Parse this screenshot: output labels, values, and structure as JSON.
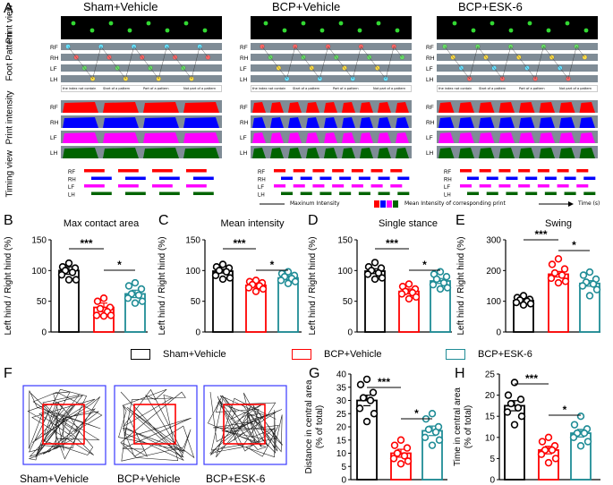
{
  "panel_labels": [
    "A",
    "B",
    "C",
    "D",
    "E",
    "F",
    "G",
    "H"
  ],
  "panelA": {
    "columns": [
      "Sham+Vehicle",
      "BCP+Vehicle",
      "BCP+ESK-6"
    ],
    "row_labels": {
      "print_view": "Print view",
      "foot_pattern": "Foot Pattern",
      "print_intensity": "Print intensity",
      "timing_view": "Timing view"
    },
    "print_view_lanes": [
      "RH",
      "LH"
    ],
    "lanes": [
      "RF",
      "RH",
      "LF",
      "LH"
    ],
    "footprint_legend": [
      "the index not contain",
      "Start of a pattern",
      "Part of a pattern",
      "Not part of a pattern"
    ],
    "bottom_legend": {
      "max": "Maxinum Intensity",
      "mean": "Mean Intensity of corresponding print",
      "time": "Time (s)"
    },
    "colors": {
      "RF": "#ff0000",
      "RH": "#0000ff",
      "LF": "#ff00ff",
      "LH": "#006400",
      "track_bg": "#7f8c96",
      "dark_bg": "#000000"
    }
  },
  "legend": {
    "items": [
      {
        "label": "Sham+Vehicle",
        "color": "#000000"
      },
      {
        "label": "BCP+Vehicle",
        "color": "#ff0000"
      },
      {
        "label": "BCP+ESK-6",
        "color": "#1f8c96"
      }
    ]
  },
  "track_labels": [
    "Sham+Vehicle",
    "BCP+Vehicle",
    "BCP+ESK-6"
  ],
  "chart_data": [
    {
      "panel": "B",
      "type": "bar",
      "title": "Max contact area",
      "ylabel": "Left hind / Right hind (%)",
      "ylim": [
        0,
        150
      ],
      "yticks": [
        0,
        50,
        100,
        150
      ],
      "categories": [
        "Sham+Vehicle",
        "BCP+Vehicle",
        "BCP+ESK-6"
      ],
      "values": [
        100,
        40,
        62
      ],
      "errors": [
        6,
        7,
        6
      ],
      "points": [
        [
          112,
          106,
          104,
          100,
          97,
          93,
          85,
          85
        ],
        [
          55,
          50,
          40,
          38,
          33,
          27,
          27,
          26
        ],
        [
          80,
          75,
          70,
          62,
          60,
          55,
          50,
          47
        ]
      ],
      "sig": [
        {
          "a": 0,
          "b": 1,
          "label": "***"
        },
        {
          "a": 1,
          "b": 2,
          "label": "*"
        }
      ]
    },
    {
      "panel": "C",
      "type": "bar",
      "title": "Mean intensity",
      "ylabel": "Left hind / Right hind (%)",
      "ylim": [
        0,
        150
      ],
      "yticks": [
        0,
        50,
        100,
        150
      ],
      "categories": [
        "Sham+Vehicle",
        "BCP+Vehicle",
        "BCP+ESK-6"
      ],
      "values": [
        99,
        76,
        88
      ],
      "errors": [
        3,
        3,
        3
      ],
      "points": [
        [
          110,
          106,
          104,
          100,
          98,
          92,
          88,
          86
        ],
        [
          84,
          82,
          80,
          77,
          75,
          72,
          70,
          66
        ],
        [
          98,
          95,
          92,
          90,
          87,
          84,
          82,
          79
        ]
      ],
      "sig": [
        {
          "a": 0,
          "b": 1,
          "label": "***"
        },
        {
          "a": 1,
          "b": 2,
          "label": "*"
        }
      ]
    },
    {
      "panel": "D",
      "type": "bar",
      "title": "Single stance",
      "ylabel": "Left hind / Right hind (%)",
      "ylim": [
        0,
        150
      ],
      "yticks": [
        0,
        50,
        100,
        150
      ],
      "categories": [
        "Sham+Vehicle",
        "BCP+Vehicle",
        "BCP+ESK-6"
      ],
      "values": [
        99,
        66,
        83
      ],
      "errors": [
        4,
        4,
        4
      ],
      "points": [
        [
          113,
          106,
          104,
          100,
          96,
          94,
          88,
          86
        ],
        [
          78,
          74,
          70,
          66,
          64,
          62,
          57,
          54
        ],
        [
          98,
          94,
          90,
          86,
          80,
          77,
          72,
          70
        ]
      ],
      "sig": [
        {
          "a": 0,
          "b": 1,
          "label": "***"
        },
        {
          "a": 1,
          "b": 2,
          "label": "*"
        }
      ]
    },
    {
      "panel": "E",
      "type": "bar",
      "title": "Swing",
      "ylabel": "Left hind / Right hind (%)",
      "ylim": [
        0,
        300
      ],
      "yticks": [
        0,
        100,
        200,
        300
      ],
      "categories": [
        "Sham+Vehicle",
        "BCP+Vehicle",
        "BCP+ESK-6"
      ],
      "values": [
        102,
        188,
        158
      ],
      "errors": [
        5,
        9,
        9
      ],
      "points": [
        [
          118,
          112,
          106,
          104,
          100,
          96,
          92,
          88
        ],
        [
          238,
          220,
          205,
          192,
          185,
          175,
          165,
          160
        ],
        [
          195,
          185,
          172,
          162,
          156,
          150,
          138,
          118
        ]
      ],
      "sig": [
        {
          "a": 0,
          "b": 1,
          "label": "***"
        },
        {
          "a": 1,
          "b": 2,
          "label": "*"
        }
      ]
    },
    {
      "panel": "G",
      "type": "bar",
      "title": "",
      "ylabel": "Distance in central area (% of total)",
      "ylim": [
        0,
        40
      ],
      "yticks": [
        0,
        5,
        10,
        15,
        20,
        25,
        30,
        35,
        40
      ],
      "categories": [
        "Sham+Vehicle",
        "BCP+Vehicle",
        "BCP+ESK-6"
      ],
      "values": [
        30,
        10,
        18.5
      ],
      "errors": [
        2,
        1.5,
        1.8
      ],
      "points": [
        [
          38,
          36,
          33,
          31,
          30,
          27,
          25,
          22
        ],
        [
          15,
          13,
          12,
          10,
          9,
          8,
          7,
          6
        ],
        [
          25,
          23,
          20,
          19,
          18,
          16,
          15,
          13
        ]
      ],
      "sig": [
        {
          "a": 0,
          "b": 1,
          "label": "***"
        },
        {
          "a": 1,
          "b": 2,
          "label": "*"
        }
      ]
    },
    {
      "panel": "H",
      "type": "bar",
      "title": "",
      "ylabel": "Time in central area (% of total)",
      "ylim": [
        0,
        25
      ],
      "yticks": [
        0,
        5,
        10,
        15,
        20,
        25
      ],
      "categories": [
        "Sham+Vehicle",
        "BCP+Vehicle",
        "BCP+ESK-6"
      ],
      "values": [
        17.5,
        7,
        11
      ],
      "errors": [
        1.2,
        0.9,
        0.9
      ],
      "points": [
        [
          23,
          20,
          19,
          18,
          17,
          16,
          15,
          13
        ],
        [
          10,
          9,
          8,
          7,
          7,
          6,
          5,
          4
        ],
        [
          15,
          13,
          12,
          11,
          11,
          10,
          9,
          8
        ]
      ],
      "sig": [
        {
          "a": 0,
          "b": 1,
          "label": "***"
        },
        {
          "a": 1,
          "b": 2,
          "label": "*"
        }
      ]
    }
  ]
}
